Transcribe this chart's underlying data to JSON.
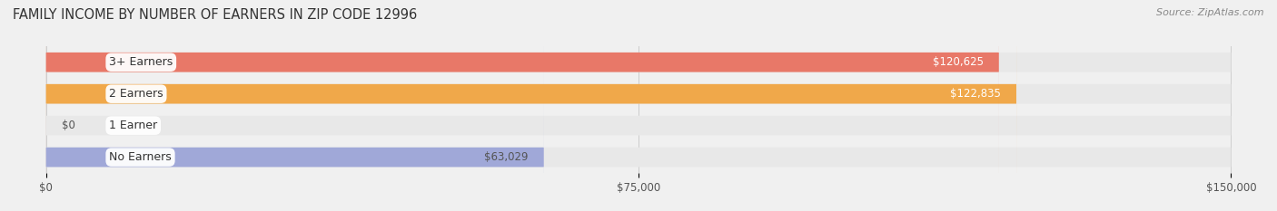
{
  "title": "FAMILY INCOME BY NUMBER OF EARNERS IN ZIP CODE 12996",
  "source": "Source: ZipAtlas.com",
  "categories": [
    "No Earners",
    "1 Earner",
    "2 Earners",
    "3+ Earners"
  ],
  "values": [
    63029,
    0,
    122835,
    120625
  ],
  "bar_colors": [
    "#a0a8d8",
    "#f0a0b8",
    "#f0a84a",
    "#e87868"
  ],
  "label_colors": [
    "#555555",
    "#555555",
    "#ffffff",
    "#ffffff"
  ],
  "xlim": [
    0,
    150000
  ],
  "xticks": [
    0,
    75000,
    150000
  ],
  "xtick_labels": [
    "$0",
    "$75,000",
    "$150,000"
  ],
  "background_color": "#f0f0f0",
  "bar_background_color": "#e8e8e8",
  "figsize": [
    14.06,
    2.33
  ],
  "dpi": 100
}
